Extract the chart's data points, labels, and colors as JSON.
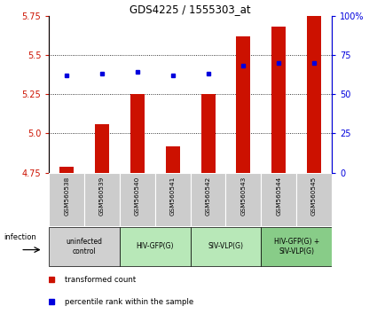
{
  "title": "GDS4225 / 1555303_at",
  "samples": [
    "GSM560538",
    "GSM560539",
    "GSM560540",
    "GSM560541",
    "GSM560542",
    "GSM560543",
    "GSM560544",
    "GSM560545"
  ],
  "transformed_counts": [
    4.79,
    5.06,
    5.25,
    4.92,
    5.25,
    5.62,
    5.68,
    5.75
  ],
  "percentile_ranks": [
    62,
    63,
    64,
    62,
    63,
    68,
    70,
    70
  ],
  "ylim_left": [
    4.75,
    5.75
  ],
  "ylim_right": [
    0,
    100
  ],
  "yticks_left": [
    4.75,
    5.0,
    5.25,
    5.5,
    5.75
  ],
  "yticks_right": [
    0,
    25,
    50,
    75,
    100
  ],
  "groups": [
    {
      "label": "uninfected\ncontrol",
      "samples": [
        0,
        1
      ],
      "color": "#d0d0d0"
    },
    {
      "label": "HIV-GFP(G)",
      "samples": [
        2,
        3
      ],
      "color": "#b8e8b8"
    },
    {
      "label": "SIV-VLP(G)",
      "samples": [
        4,
        5
      ],
      "color": "#b8e8b8"
    },
    {
      "label": "HIV-GFP(G) +\nSIV-VLP(G)",
      "samples": [
        6,
        7
      ],
      "color": "#88cc88"
    }
  ],
  "bar_color": "#cc1100",
  "dot_color": "#0000dd",
  "bar_width": 0.4,
  "sample_box_color": "#cccccc",
  "infection_label": "infection",
  "legend_items": [
    {
      "label": "transformed count",
      "color": "#cc1100"
    },
    {
      "label": "percentile rank within the sample",
      "color": "#0000dd"
    }
  ]
}
